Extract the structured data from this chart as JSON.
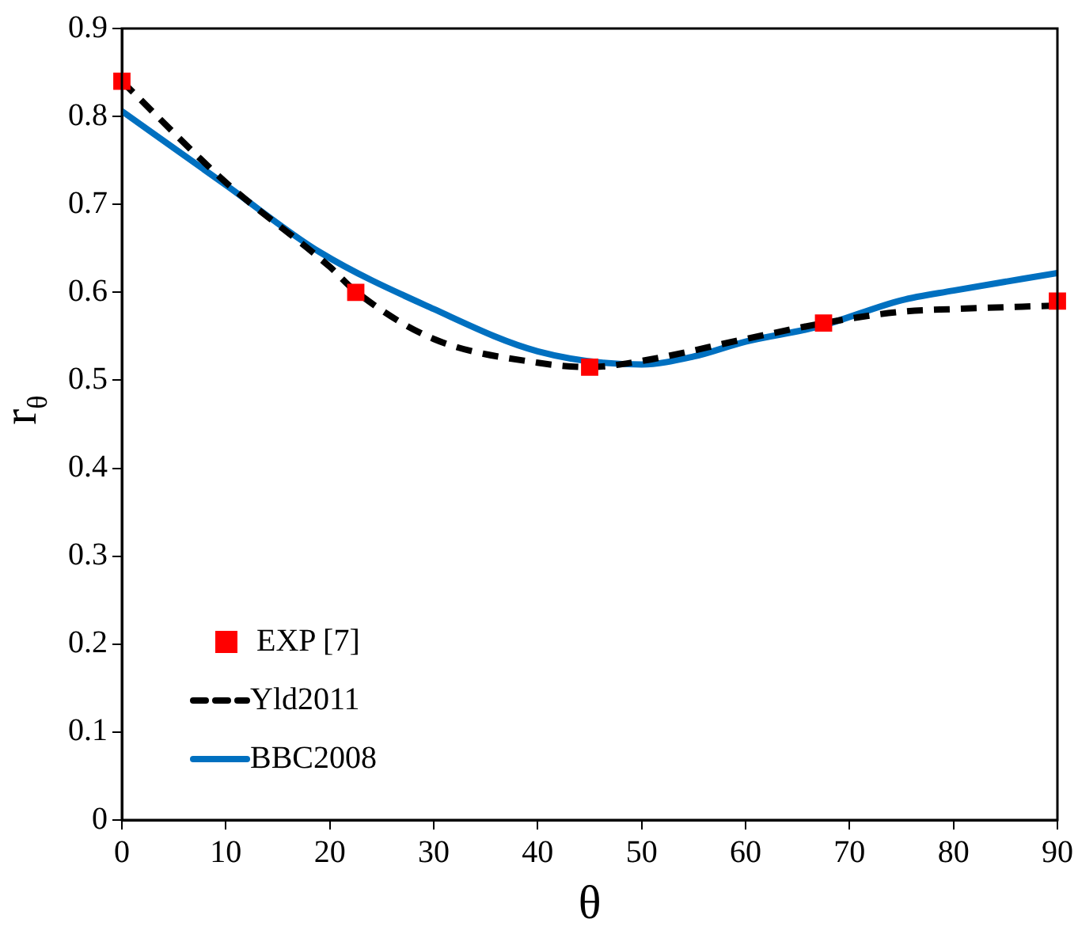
{
  "chart_data": {
    "type": "line",
    "xlabel": "θ",
    "ylabel": "r$_{θ}$",
    "xlim": [
      0,
      90
    ],
    "xticks": [
      0,
      10,
      20,
      30,
      40,
      50,
      60,
      70,
      80,
      90
    ],
    "ylim": [
      0,
      0.9
    ],
    "yticks": [
      0,
      0.1,
      0.2,
      0.3,
      0.4,
      0.5,
      0.6,
      0.7,
      0.8,
      0.9
    ],
    "grid": false,
    "legend": "bottom left",
    "series": [
      {
        "name": "EXP [7]",
        "type": "scatter",
        "marker": "square",
        "color": "#ff0000",
        "x": [
          0,
          22.5,
          45,
          67.5,
          90
        ],
        "values": [
          0.84,
          0.6,
          0.515,
          0.565,
          0.59
        ]
      },
      {
        "name": "Yld2011",
        "line_style": "dashed",
        "color": "#000000",
        "x": [
          0,
          10,
          20,
          22.5,
          30,
          40,
          45,
          50,
          60,
          67.5,
          75,
          80,
          90
        ],
        "values": [
          0.84,
          0.725,
          0.629,
          0.601,
          0.547,
          0.52,
          0.515,
          0.522,
          0.547,
          0.565,
          0.578,
          0.581,
          0.585
        ]
      },
      {
        "name": "BBC2008",
        "line_style": "solid",
        "color": "#0070c0",
        "x": [
          0,
          10,
          19,
          30,
          40,
          50,
          55,
          60,
          67,
          75,
          80,
          90
        ],
        "values": [
          0.806,
          0.722,
          0.646,
          0.581,
          0.533,
          0.518,
          0.527,
          0.544,
          0.561,
          0.591,
          0.602,
          0.622
        ]
      }
    ]
  }
}
